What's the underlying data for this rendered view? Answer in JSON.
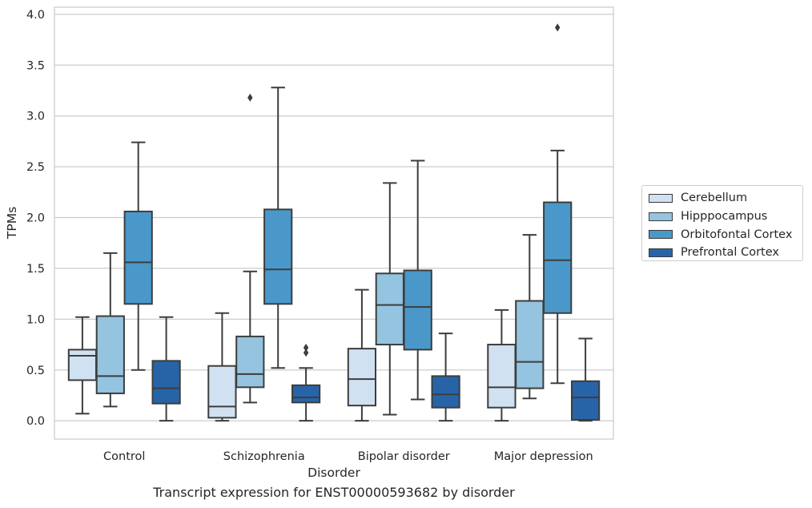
{
  "chart_data": {
    "type": "boxplot",
    "caption": "Transcript expression for ENST00000593682 by disorder",
    "xlabel": "Disorder",
    "ylabel": "TPMs",
    "ylim": [
      -0.18,
      4.07
    ],
    "yticks": [
      "0.0",
      "0.5",
      "1.0",
      "1.5",
      "2.0",
      "2.5",
      "3.0",
      "3.5",
      "4.0"
    ],
    "grid": "horizontal",
    "legend_position": "right",
    "categories": [
      "Control",
      "Schizophrenia",
      "Bipolar disorder",
      "Major depression"
    ],
    "series": [
      {
        "name": "Cerebellum",
        "color": "#d0e1f2",
        "boxes": [
          {
            "whislo": 0.07,
            "q1": 0.4,
            "med": 0.64,
            "q3": 0.7,
            "whishi": 1.02,
            "fliers": []
          },
          {
            "whislo": 0.0,
            "q1": 0.03,
            "med": 0.14,
            "q3": 0.54,
            "whishi": 1.06,
            "fliers": []
          },
          {
            "whislo": 0.0,
            "q1": 0.15,
            "med": 0.41,
            "q3": 0.71,
            "whishi": 1.29,
            "fliers": []
          },
          {
            "whislo": 0.0,
            "q1": 0.13,
            "med": 0.33,
            "q3": 0.75,
            "whishi": 1.09,
            "fliers": []
          }
        ]
      },
      {
        "name": "Hipppocampus",
        "color": "#94c4df",
        "boxes": [
          {
            "whislo": 0.14,
            "q1": 0.27,
            "med": 0.44,
            "q3": 1.03,
            "whishi": 1.65,
            "fliers": []
          },
          {
            "whislo": 0.18,
            "q1": 0.33,
            "med": 0.46,
            "q3": 0.83,
            "whishi": 1.47,
            "fliers": [
              3.18
            ]
          },
          {
            "whislo": 0.06,
            "q1": 0.75,
            "med": 1.14,
            "q3": 1.45,
            "whishi": 2.34,
            "fliers": []
          },
          {
            "whislo": 0.22,
            "q1": 0.32,
            "med": 0.58,
            "q3": 1.18,
            "whishi": 1.83,
            "fliers": []
          }
        ]
      },
      {
        "name": "Orbitofontal Cortex",
        "color": "#4a98c9",
        "boxes": [
          {
            "whislo": 0.5,
            "q1": 1.15,
            "med": 1.56,
            "q3": 2.06,
            "whishi": 2.74,
            "fliers": []
          },
          {
            "whislo": 0.52,
            "q1": 1.15,
            "med": 1.49,
            "q3": 2.08,
            "whishi": 3.28,
            "fliers": []
          },
          {
            "whislo": 0.21,
            "q1": 0.7,
            "med": 1.12,
            "q3": 1.48,
            "whishi": 2.56,
            "fliers": []
          },
          {
            "whislo": 0.37,
            "q1": 1.06,
            "med": 1.58,
            "q3": 2.15,
            "whishi": 2.66,
            "fliers": [
              3.87
            ]
          }
        ]
      },
      {
        "name": "Prefrontal Cortex",
        "color": "#2764a7",
        "boxes": [
          {
            "whislo": 0.0,
            "q1": 0.17,
            "med": 0.32,
            "q3": 0.59,
            "whishi": 1.02,
            "fliers": []
          },
          {
            "whislo": 0.0,
            "q1": 0.18,
            "med": 0.23,
            "q3": 0.35,
            "whishi": 0.52,
            "fliers": [
              0.67,
              0.72
            ]
          },
          {
            "whislo": 0.0,
            "q1": 0.13,
            "med": 0.26,
            "q3": 0.44,
            "whishi": 0.86,
            "fliers": []
          },
          {
            "whislo": 0.0,
            "q1": 0.01,
            "med": 0.23,
            "q3": 0.39,
            "whishi": 0.81,
            "fliers": []
          }
        ]
      }
    ]
  }
}
